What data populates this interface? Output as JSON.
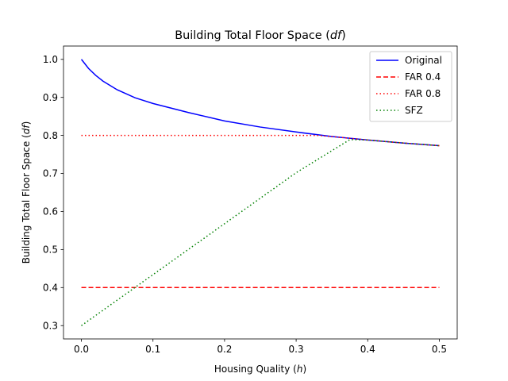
{
  "chart_data": {
    "type": "line",
    "title": "Building Total Floor Space (df)",
    "title_parts": [
      "Building Total Floor Space (",
      "df",
      ")"
    ],
    "xlabel": "Housing Quality (h)",
    "xlabel_parts": [
      "Housing Quality (",
      "h",
      ")"
    ],
    "ylabel": "Building Total Floor Space (df)",
    "ylabel_parts": [
      "Building Total Floor Space (",
      "df",
      ")"
    ],
    "xlim": [
      -0.025,
      0.525
    ],
    "ylim": [
      0.265,
      1.035
    ],
    "xticks": [
      0.0,
      0.1,
      0.2,
      0.3,
      0.4,
      0.5
    ],
    "xtick_labels": [
      "0.0",
      "0.1",
      "0.2",
      "0.3",
      "0.4",
      "0.5"
    ],
    "yticks": [
      0.3,
      0.4,
      0.5,
      0.6,
      0.7,
      0.8,
      0.9,
      1.0
    ],
    "ytick_labels": [
      "0.3",
      "0.4",
      "0.5",
      "0.6",
      "0.7",
      "0.8",
      "0.9",
      "1.0"
    ],
    "grid": false,
    "legend_position": "top-right",
    "series": [
      {
        "name": "Original",
        "color": "#0000ff",
        "style": "solid",
        "x": [
          0.0,
          0.01,
          0.02,
          0.03,
          0.05,
          0.075,
          0.1,
          0.15,
          0.2,
          0.25,
          0.3,
          0.35,
          0.4,
          0.45,
          0.5
        ],
        "y": [
          1.0,
          0.976,
          0.958,
          0.943,
          0.92,
          0.899,
          0.884,
          0.86,
          0.838,
          0.822,
          0.809,
          0.797,
          0.788,
          0.78,
          0.773
        ]
      },
      {
        "name": "FAR 0.4",
        "color": "#ff0000",
        "style": "dashed",
        "x": [
          0.0,
          0.5
        ],
        "y": [
          0.4,
          0.4
        ]
      },
      {
        "name": "FAR 0.8",
        "color": "#ff0000",
        "style": "dotted",
        "x": [
          0.0,
          0.1,
          0.2,
          0.3,
          0.33,
          0.35,
          0.4,
          0.45,
          0.5
        ],
        "y": [
          0.8,
          0.8,
          0.8,
          0.8,
          0.8,
          0.797,
          0.788,
          0.78,
          0.773
        ]
      },
      {
        "name": "SFZ",
        "color": "#008000",
        "style": "dotted",
        "x": [
          0.0,
          0.1,
          0.2,
          0.3,
          0.375,
          0.4,
          0.45,
          0.5
        ],
        "y": [
          0.3,
          0.434,
          0.568,
          0.702,
          0.789,
          0.788,
          0.78,
          0.773
        ]
      }
    ]
  }
}
